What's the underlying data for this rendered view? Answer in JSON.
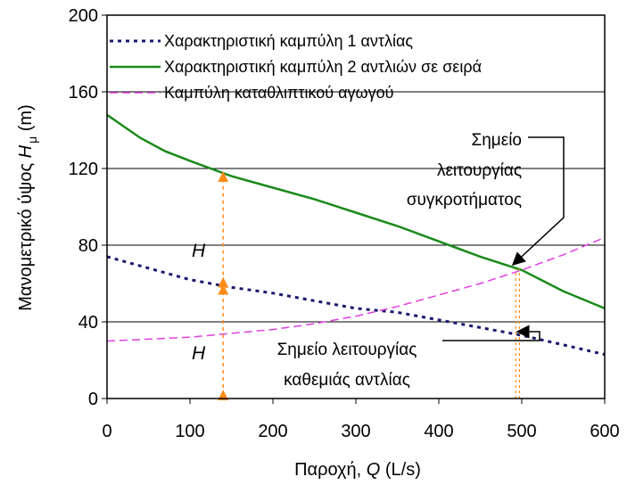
{
  "chart_data": {
    "type": "line",
    "xlabel_prefix": "Παροχή, ",
    "xlabel_var": "Q",
    "xlabel_unit": " (L/s)",
    "ylabel_prefix": "Μανομετρικό ύψος ",
    "ylabel_var": "H",
    "ylabel_sub": "μ",
    "ylabel_unit": " (m)",
    "xlim": [
      0,
      600
    ],
    "ylim": [
      0,
      200
    ],
    "xticks": [
      0,
      100,
      200,
      300,
      400,
      500,
      600
    ],
    "yticks": [
      0,
      40,
      80,
      120,
      160,
      200
    ],
    "grid": "horizontal",
    "legend": "top-left",
    "series": [
      {
        "name": "Χαρακτηριστική καμπύλη 1 αντλίας",
        "style": "dotted",
        "color": "#1a1a6e",
        "x": [
          0,
          50,
          100,
          150,
          200,
          250,
          300,
          350,
          400,
          450,
          500,
          550,
          600
        ],
        "y": [
          74,
          68,
          62,
          58,
          55,
          51,
          47,
          45,
          41,
          37,
          33,
          28,
          23
        ]
      },
      {
        "name": "Χαρακτηριστική καμπύλη 2 αντλιών σε σειρά",
        "style": "solid",
        "color": "#1a8a1a",
        "x": [
          0,
          40,
          70,
          100,
          150,
          200,
          250,
          300,
          350,
          400,
          450,
          500,
          550,
          600
        ],
        "y": [
          148,
          136,
          129,
          124,
          116,
          110,
          104,
          97,
          90,
          82,
          74,
          67,
          56,
          47
        ]
      },
      {
        "name": "Καμπύλη καταθλιπτικού αγωγού",
        "style": "dashed",
        "color": "#e040e0",
        "x": [
          0,
          50,
          100,
          150,
          200,
          250,
          300,
          350,
          400,
          450,
          500,
          550,
          600
        ],
        "y": [
          30,
          31,
          32,
          34,
          36,
          39,
          43,
          48,
          54,
          60,
          67,
          75,
          84
        ]
      }
    ],
    "annotations": {
      "system_point_lines": [
        "Σημείο",
        "λειτουργίας",
        "συγκροτήματος"
      ],
      "pump_point_lines": [
        "Σημείο λειτουργίας",
        "καθεμιάς αντλίας"
      ],
      "h_label": "H",
      "h_label_2": "H",
      "h_marker_x": 140,
      "operating_x": 495
    },
    "colors": {
      "h_arrows": "#ff8c1a",
      "grid": "#000000"
    }
  }
}
